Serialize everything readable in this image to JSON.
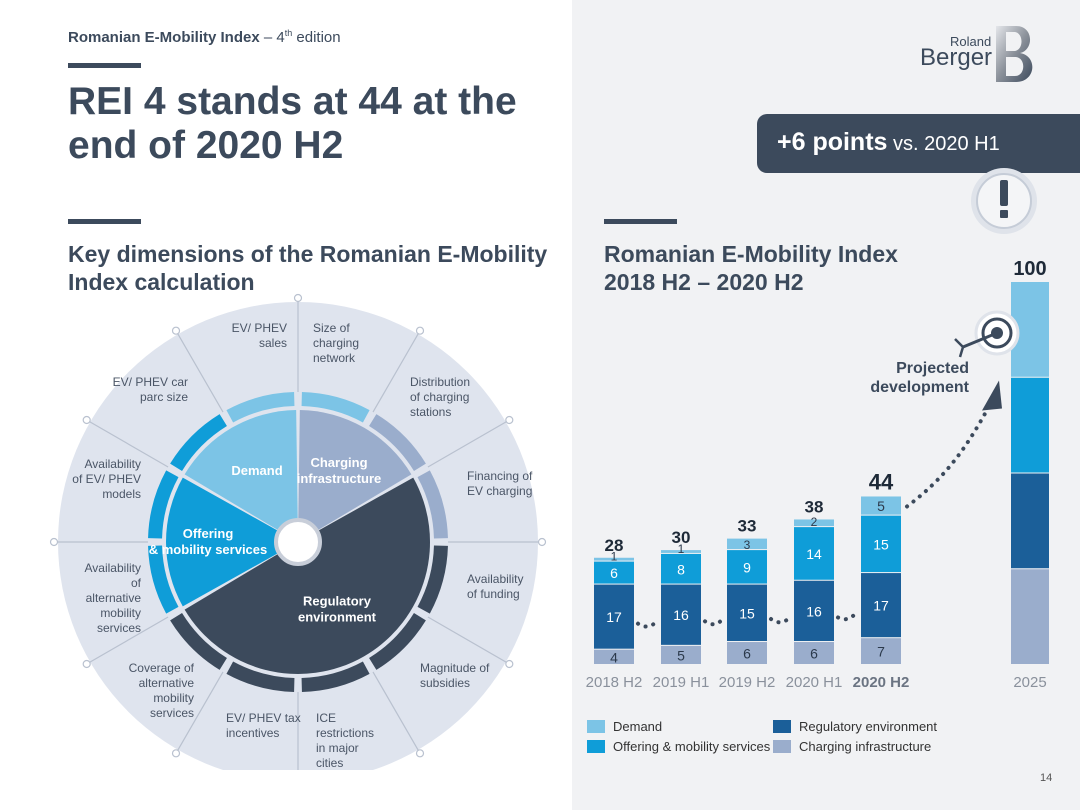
{
  "header": {
    "kicker_bold": "Romanian E-Mobility Index",
    "kicker_rest": " – 4",
    "kicker_sup": "th",
    "kicker_end": " edition",
    "title": "REI 4 stands at 44 at the end of 2020 H2",
    "brand_small": "Roland",
    "brand_large": "Berger",
    "page_number": "14"
  },
  "callout": {
    "bold": "+6 points",
    "rest": " vs. 2020 H1"
  },
  "left_section": {
    "subtitle": "Key dimensions of the Romanian E-Mobility Index calculation",
    "wheel": {
      "inner": [
        {
          "label": "Demand",
          "color": "#7cc4e6"
        },
        {
          "label": "Charging infrastructure",
          "color": "#9aadcc"
        },
        {
          "label": "Regulatory environment",
          "color": "#3c4a5c"
        },
        {
          "label": "Offering & mobility services",
          "color": "#0f9dd8"
        }
      ],
      "outer_labels": [
        "EV/ PHEV sales",
        "Size of charging network",
        "Distribution of charging stations",
        "Financing of EV charging",
        "Availability of funding",
        "Magnitude of subsidies",
        "ICE restrictions in major cities",
        "EV/ PHEV tax incentives",
        "Coverage of alternative mobility services",
        "Availability of alternative mobility services",
        "Availability of EV/ PHEV models",
        "EV/ PHEV car parc size"
      ]
    }
  },
  "chart_data": {
    "type": "bar",
    "stacked": true,
    "title": "Romanian E-Mobility Index 2018 H2 – 2020 H2",
    "categories": [
      "2018 H2",
      "2019 H1",
      "2019 H2",
      "2020 H1",
      "2020 H2",
      "2025"
    ],
    "highlight_category": "2020 H2",
    "totals": [
      28,
      30,
      33,
      38,
      44,
      100
    ],
    "series": [
      {
        "name": "Charging infrastructure",
        "color": "#9aadcc",
        "values": [
          4,
          5,
          6,
          6,
          7,
          25
        ]
      },
      {
        "name": "Regulatory environment",
        "color": "#1b5f99",
        "values": [
          17,
          16,
          15,
          16,
          17,
          25
        ]
      },
      {
        "name": "Offering & mobility services",
        "color": "#0f9dd8",
        "values": [
          6,
          8,
          9,
          14,
          15,
          25
        ]
      },
      {
        "name": "Demand",
        "color": "#7cc4e6",
        "values": [
          1,
          1,
          3,
          2,
          5,
          25
        ]
      }
    ],
    "value_labels_hidden_for": [
      "2025"
    ],
    "annotation": "Projected development",
    "ylim": [
      0,
      100
    ],
    "legend_order": [
      "Demand",
      "Regulatory environment",
      "Offering & mobility services",
      "Charging infrastructure"
    ]
  }
}
